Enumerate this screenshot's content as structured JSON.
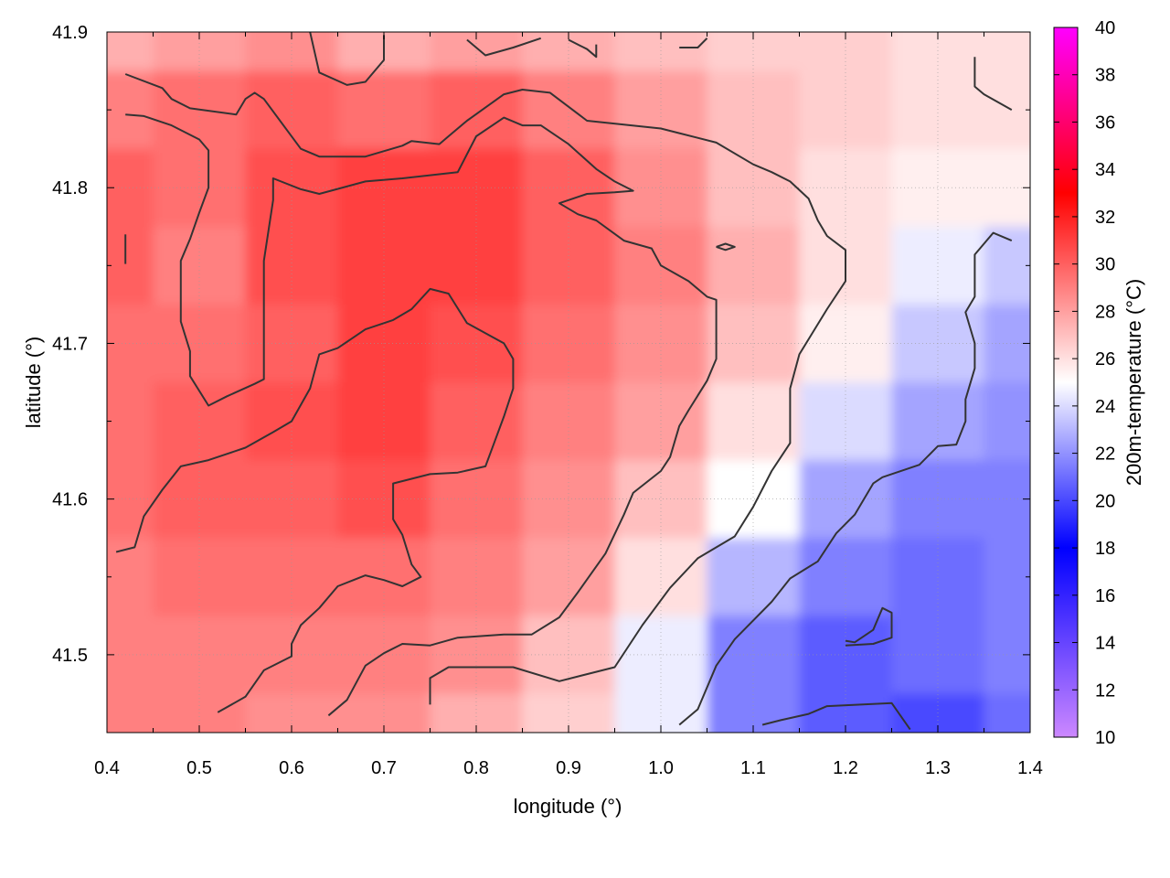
{
  "chart_data": {
    "type": "heatmap",
    "xlabel": "longitude (°)",
    "ylabel": "latitude (°)",
    "colorbar_label": "200m-temperature (°C)",
    "xlim": [
      0.4,
      1.4
    ],
    "ylim": [
      41.45,
      41.9
    ],
    "x_ticks": [
      "0.4",
      "0.5",
      "0.6",
      "0.7",
      "0.8",
      "0.9",
      "1.0",
      "1.1",
      "1.2",
      "1.3",
      "1.4"
    ],
    "y_ticks": [
      "41.5",
      "41.6",
      "41.7",
      "41.8",
      "41.9"
    ],
    "colorbar_range": [
      10,
      40
    ],
    "colorbar_ticks": [
      "10",
      "12",
      "14",
      "16",
      "18",
      "20",
      "22",
      "24",
      "26",
      "28",
      "30",
      "32",
      "34",
      "36",
      "38",
      "40"
    ],
    "colormap": [
      {
        "value": 10,
        "color": "#cc88ff"
      },
      {
        "value": 18,
        "color": "#0000ff"
      },
      {
        "value": 25,
        "color": "#ffffff"
      },
      {
        "value": 33,
        "color": "#ff0000"
      },
      {
        "value": 40,
        "color": "#ff00ff"
      }
    ],
    "grid": true,
    "temperature_field": {
      "x": [
        0.4,
        0.5,
        0.6,
        0.7,
        0.8,
        0.9,
        1.0,
        1.1,
        1.2,
        1.3,
        1.4
      ],
      "y": [
        41.9,
        41.85,
        41.8,
        41.75,
        41.7,
        41.65,
        41.6,
        41.55,
        41.5,
        41.45
      ],
      "values": [
        [
          27.5,
          28.0,
          28.5,
          27.5,
          28.0,
          27.5,
          27.0,
          26.5,
          26.5,
          26.0,
          26.0
        ],
        [
          29.0,
          29.5,
          30.0,
          29.5,
          30.0,
          29.0,
          28.0,
          27.0,
          26.5,
          26.0,
          26.0
        ],
        [
          30.0,
          29.5,
          30.5,
          31.0,
          31.0,
          30.0,
          28.5,
          27.0,
          26.0,
          25.5,
          25.5
        ],
        [
          30.0,
          29.0,
          30.5,
          31.0,
          31.0,
          30.0,
          29.0,
          27.5,
          26.0,
          24.5,
          23.5
        ],
        [
          29.5,
          29.5,
          30.0,
          31.0,
          30.5,
          29.5,
          28.5,
          27.0,
          25.5,
          23.5,
          22.5
        ],
        [
          29.5,
          30.0,
          30.5,
          31.0,
          30.0,
          29.0,
          28.0,
          26.0,
          24.0,
          22.5,
          22.0
        ],
        [
          29.5,
          30.0,
          30.0,
          30.5,
          29.5,
          28.5,
          27.0,
          25.0,
          22.5,
          21.5,
          21.5
        ],
        [
          29.0,
          29.5,
          29.5,
          29.5,
          29.0,
          28.0,
          26.0,
          23.0,
          21.5,
          21.0,
          21.5
        ],
        [
          29.0,
          29.0,
          29.0,
          29.0,
          28.5,
          27.0,
          24.5,
          21.5,
          20.5,
          21.0,
          21.5
        ],
        [
          29.0,
          29.0,
          28.5,
          28.5,
          27.5,
          26.5,
          24.5,
          21.5,
          20.5,
          20.0,
          21.0
        ]
      ]
    },
    "contours": [
      [
        [
          0.42,
          41.873
        ],
        [
          0.46,
          41.864
        ],
        [
          0.47,
          41.857
        ],
        [
          0.49,
          41.851
        ],
        [
          0.54,
          41.847
        ],
        [
          0.55,
          41.857
        ],
        [
          0.56,
          41.861
        ],
        [
          0.57,
          41.857
        ],
        [
          0.61,
          41.825
        ],
        [
          0.63,
          41.82
        ],
        [
          0.68,
          41.82
        ],
        [
          0.72,
          41.827
        ],
        [
          0.73,
          41.83
        ],
        [
          0.76,
          41.828
        ],
        [
          0.77,
          41.833
        ],
        [
          0.79,
          41.843
        ],
        [
          0.83,
          41.86
        ],
        [
          0.85,
          41.863
        ],
        [
          0.88,
          41.861
        ],
        [
          0.92,
          41.843
        ],
        [
          1.0,
          41.838
        ],
        [
          1.02,
          41.835
        ],
        [
          1.06,
          41.829
        ],
        [
          1.1,
          41.815
        ],
        [
          1.12,
          41.81
        ],
        [
          1.14,
          41.804
        ],
        [
          1.16,
          41.793
        ],
        [
          1.17,
          41.779
        ],
        [
          1.18,
          41.769
        ],
        [
          1.2,
          41.76
        ],
        [
          1.2,
          41.74
        ],
        [
          1.18,
          41.722
        ],
        [
          1.15,
          41.693
        ],
        [
          1.14,
          41.671
        ],
        [
          1.14,
          41.636
        ],
        [
          1.12,
          41.618
        ],
        [
          1.1,
          41.595
        ],
        [
          1.08,
          41.576
        ],
        [
          1.04,
          41.562
        ],
        [
          1.01,
          41.543
        ],
        [
          0.98,
          41.519
        ],
        [
          0.95,
          41.492
        ],
        [
          0.89,
          41.483
        ],
        [
          0.84,
          41.492
        ],
        [
          0.77,
          41.492
        ],
        [
          0.75,
          41.485
        ],
        [
          0.75,
          41.468
        ]
      ],
      [
        [
          0.42,
          41.847
        ],
        [
          0.44,
          41.846
        ],
        [
          0.47,
          41.84
        ],
        [
          0.5,
          41.831
        ],
        [
          0.51,
          41.824
        ],
        [
          0.51,
          41.8
        ],
        [
          0.5,
          41.784
        ],
        [
          0.49,
          41.767
        ],
        [
          0.48,
          41.753
        ],
        [
          0.48,
          41.734
        ],
        [
          0.48,
          41.714
        ],
        [
          0.49,
          41.695
        ],
        [
          0.49,
          41.679
        ],
        [
          0.51,
          41.66
        ],
        [
          0.53,
          41.666
        ],
        [
          0.56,
          41.674
        ],
        [
          0.57,
          41.677
        ],
        [
          0.57,
          41.69
        ],
        [
          0.57,
          41.715
        ],
        [
          0.57,
          41.753
        ],
        [
          0.58,
          41.792
        ],
        [
          0.58,
          41.806
        ],
        [
          0.61,
          41.799
        ],
        [
          0.63,
          41.796
        ],
        [
          0.68,
          41.804
        ],
        [
          0.72,
          41.806
        ],
        [
          0.78,
          41.81
        ],
        [
          0.8,
          41.833
        ],
        [
          0.83,
          41.845
        ],
        [
          0.85,
          41.84
        ],
        [
          0.87,
          41.84
        ],
        [
          0.9,
          41.828
        ],
        [
          0.93,
          41.812
        ],
        [
          0.95,
          41.804
        ],
        [
          0.97,
          41.798
        ],
        [
          0.95,
          41.797
        ],
        [
          0.92,
          41.796
        ],
        [
          0.89,
          41.79
        ],
        [
          0.91,
          41.783
        ],
        [
          0.93,
          41.779
        ],
        [
          0.96,
          41.766
        ],
        [
          0.99,
          41.761
        ],
        [
          1.0,
          41.75
        ],
        [
          1.03,
          41.74
        ],
        [
          1.05,
          41.73
        ],
        [
          1.06,
          41.728
        ],
        [
          1.06,
          41.712
        ],
        [
          1.06,
          41.69
        ],
        [
          1.05,
          41.676
        ],
        [
          1.03,
          41.657
        ],
        [
          1.02,
          41.647
        ],
        [
          1.01,
          41.627
        ],
        [
          1.0,
          41.618
        ],
        [
          0.97,
          41.604
        ],
        [
          0.96,
          41.59
        ],
        [
          0.94,
          41.565
        ],
        [
          0.91,
          41.54
        ],
        [
          0.89,
          41.524
        ],
        [
          0.86,
          41.513
        ],
        [
          0.83,
          41.513
        ],
        [
          0.78,
          41.511
        ],
        [
          0.75,
          41.506
        ],
        [
          0.72,
          41.507
        ],
        [
          0.7,
          41.501
        ],
        [
          0.68,
          41.493
        ],
        [
          0.66,
          41.471
        ],
        [
          0.64,
          41.461
        ]
      ],
      [
        [
          0.41,
          41.566
        ],
        [
          0.43,
          41.569
        ],
        [
          0.44,
          41.589
        ],
        [
          0.46,
          41.606
        ],
        [
          0.48,
          41.621
        ],
        [
          0.51,
          41.625
        ],
        [
          0.55,
          41.633
        ],
        [
          0.58,
          41.643
        ],
        [
          0.6,
          41.65
        ],
        [
          0.62,
          41.671
        ],
        [
          0.63,
          41.693
        ],
        [
          0.65,
          41.697
        ],
        [
          0.68,
          41.709
        ],
        [
          0.71,
          41.715
        ],
        [
          0.73,
          41.722
        ],
        [
          0.75,
          41.735
        ],
        [
          0.77,
          41.732
        ],
        [
          0.79,
          41.713
        ],
        [
          0.83,
          41.7
        ],
        [
          0.84,
          41.69
        ],
        [
          0.84,
          41.671
        ],
        [
          0.83,
          41.653
        ],
        [
          0.82,
          41.637
        ],
        [
          0.81,
          41.621
        ],
        [
          0.78,
          41.617
        ],
        [
          0.75,
          41.616
        ],
        [
          0.73,
          41.613
        ],
        [
          0.71,
          41.61
        ],
        [
          0.71,
          41.601
        ],
        [
          0.71,
          41.587
        ],
        [
          0.72,
          41.577
        ],
        [
          0.73,
          41.558
        ],
        [
          0.74,
          41.55
        ],
        [
          0.72,
          41.544
        ],
        [
          0.7,
          41.548
        ],
        [
          0.68,
          41.551
        ],
        [
          0.65,
          41.544
        ],
        [
          0.63,
          41.53
        ],
        [
          0.61,
          41.519
        ],
        [
          0.6,
          41.507
        ],
        [
          0.6,
          41.499
        ],
        [
          0.57,
          41.49
        ],
        [
          0.55,
          41.473
        ],
        [
          0.52,
          41.463
        ]
      ],
      [
        [
          1.02,
          41.455
        ],
        [
          1.04,
          41.465
        ],
        [
          1.06,
          41.493
        ],
        [
          1.08,
          41.51
        ],
        [
          1.12,
          41.534
        ],
        [
          1.14,
          41.549
        ],
        [
          1.17,
          41.56
        ],
        [
          1.19,
          41.578
        ],
        [
          1.21,
          41.59
        ],
        [
          1.23,
          41.61
        ],
        [
          1.24,
          41.614
        ],
        [
          1.28,
          41.622
        ],
        [
          1.3,
          41.634
        ],
        [
          1.32,
          41.635
        ],
        [
          1.33,
          41.65
        ],
        [
          1.33,
          41.664
        ],
        [
          1.34,
          41.684
        ],
        [
          1.34,
          41.7
        ],
        [
          1.33,
          41.72
        ],
        [
          1.34,
          41.73
        ],
        [
          1.34,
          41.757
        ],
        [
          1.36,
          41.771
        ],
        [
          1.38,
          41.766
        ]
      ],
      [
        [
          1.11,
          41.455
        ],
        [
          1.13,
          41.458
        ],
        [
          1.16,
          41.462
        ],
        [
          1.18,
          41.467
        ],
        [
          1.25,
          41.469
        ],
        [
          1.27,
          41.452
        ]
      ],
      [
        [
          1.2,
          41.506
        ],
        [
          1.23,
          41.507
        ],
        [
          1.25,
          41.511
        ],
        [
          1.25,
          41.527
        ],
        [
          1.24,
          41.53
        ],
        [
          1.23,
          41.516
        ],
        [
          1.21,
          41.508
        ],
        [
          1.2,
          41.509
        ]
      ],
      [
        [
          1.06,
          41.762
        ],
        [
          1.07,
          41.764
        ],
        [
          1.08,
          41.762
        ],
        [
          1.07,
          41.76
        ],
        [
          1.06,
          41.762
        ]
      ],
      [
        [
          0.62,
          41.9
        ],
        [
          0.63,
          41.874
        ],
        [
          0.66,
          41.866
        ],
        [
          0.68,
          41.868
        ],
        [
          0.7,
          41.882
        ],
        [
          0.7,
          41.898
        ]
      ],
      [
        [
          0.79,
          41.895
        ],
        [
          0.81,
          41.885
        ],
        [
          0.84,
          41.89
        ],
        [
          0.87,
          41.896
        ]
      ],
      [
        [
          0.9,
          41.895
        ],
        [
          0.92,
          41.889
        ],
        [
          0.93,
          41.884
        ],
        [
          0.93,
          41.892
        ]
      ],
      [
        [
          1.02,
          41.89
        ],
        [
          1.04,
          41.89
        ],
        [
          1.05,
          41.896
        ]
      ],
      [
        [
          1.34,
          41.884
        ],
        [
          1.34,
          41.865
        ],
        [
          1.35,
          41.86
        ],
        [
          1.38,
          41.85
        ]
      ],
      [
        [
          0.42,
          41.77
        ],
        [
          0.42,
          41.751
        ]
      ]
    ]
  }
}
